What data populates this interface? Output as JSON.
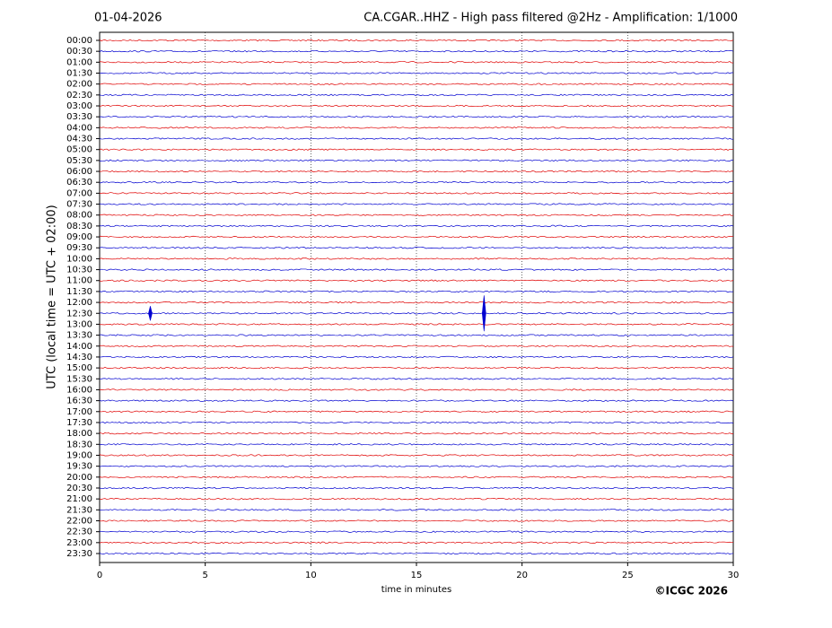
{
  "chart_data": {
    "type": "helicorder",
    "date": "01-04-2026",
    "title": "CA.CGAR..HHZ - High pass filtered @2Hz - Amplification: 1/1000",
    "ylabel": "UTC (local time = UTC + 02:00)",
    "xlabel": "time in minutes",
    "copyright": "©ICGC 2026",
    "categories": [
      "00:00",
      "00:30",
      "01:00",
      "01:30",
      "02:00",
      "02:30",
      "03:00",
      "03:30",
      "04:00",
      "04:30",
      "05:00",
      "05:30",
      "06:00",
      "06:30",
      "07:00",
      "07:30",
      "08:00",
      "08:30",
      "09:00",
      "09:30",
      "10:00",
      "10:30",
      "11:00",
      "11:30",
      "12:00",
      "12:30",
      "13:00",
      "13:30",
      "14:00",
      "14:30",
      "15:00",
      "15:30",
      "16:00",
      "16:30",
      "17:00",
      "17:30",
      "18:00",
      "18:30",
      "19:00",
      "19:30",
      "20:00",
      "20:30",
      "21:00",
      "21:30",
      "22:00",
      "22:30",
      "23:00",
      "23:30"
    ],
    "colors": [
      "#e00000",
      "#0000d0"
    ],
    "xlim": [
      0,
      30
    ],
    "xticks": [
      0,
      5,
      10,
      15,
      20,
      25,
      30
    ],
    "grid": true,
    "events": {
      "x": [
        2.4,
        18.2
      ],
      "rows": [
        "12:30",
        "12:30"
      ]
    }
  }
}
